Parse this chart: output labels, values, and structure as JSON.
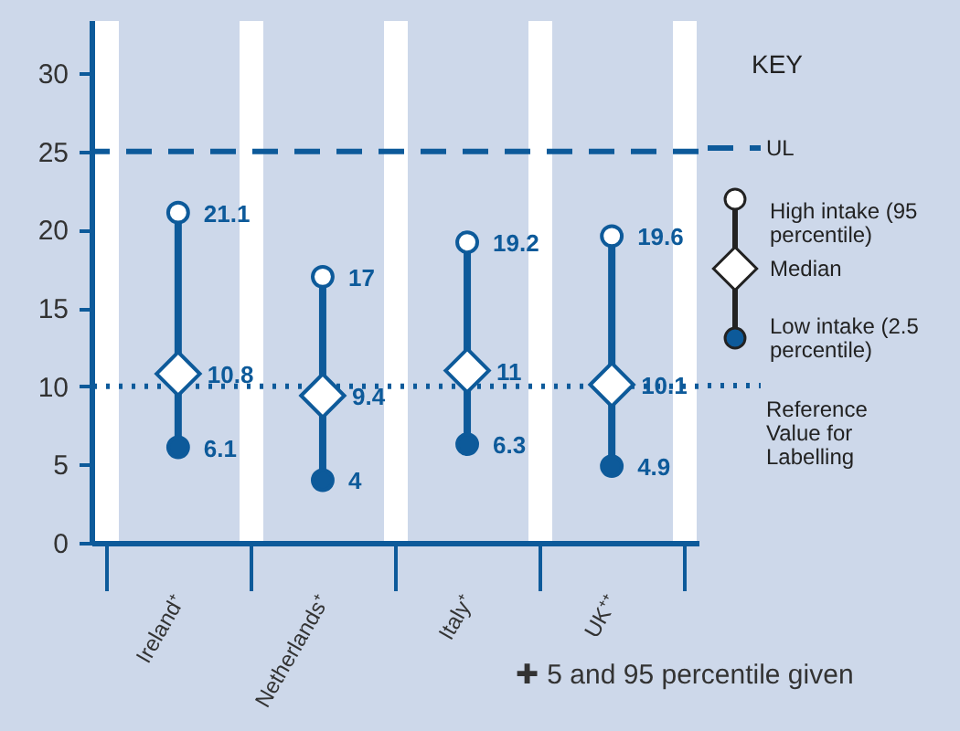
{
  "chart_data": {
    "type": "scatter",
    "legend_title": "KEY",
    "legend": "right",
    "grid": "x",
    "data_labels": true,
    "categories": [
      "Ireland⁺",
      "Netherlands⁺",
      "Italy⁺",
      "UK⁺⁺"
    ],
    "ylim": [
      0,
      33.4
    ],
    "yticks": [
      0,
      5,
      10,
      15,
      20,
      25,
      30
    ],
    "series": [
      {
        "name": "High intake (95 percentile)",
        "color": "#ffffff",
        "marker": "circle",
        "values": [
          21.1,
          17,
          19.2,
          19.6
        ]
      },
      {
        "name": "Median",
        "color": "#ffffff",
        "marker": "diamond",
        "values": [
          10.8,
          9.4,
          11,
          10.1
        ]
      },
      {
        "name": "Low intake (2.5 percentile)",
        "color": "#0d5a9a",
        "marker": "circle",
        "values": [
          6.1,
          4,
          6.3,
          4.9
        ]
      }
    ],
    "ref_lines": [
      {
        "axis": "y",
        "value": 25,
        "label": "UL",
        "line_style": "dashed",
        "color": "#0d5a9a"
      },
      {
        "axis": "y",
        "value": 10,
        "label": "Reference Value for Labelling",
        "line_style": "dotted",
        "color": "#0d5a9a"
      }
    ],
    "annotations": [
      "✚ 5 and 95 percentile given"
    ]
  }
}
